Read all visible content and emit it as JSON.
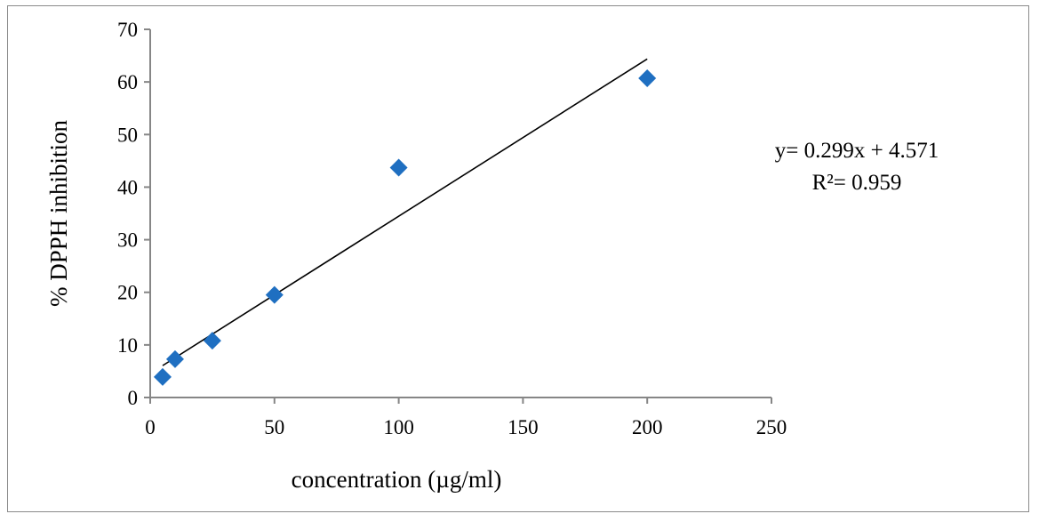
{
  "chart_data": {
    "type": "scatter",
    "title": "",
    "xlabel": "concentration (µg/ml)",
    "ylabel": "% DPPH inhibition",
    "xlim": [
      0,
      250
    ],
    "ylim": [
      0,
      70
    ],
    "xticks": [
      0,
      50,
      100,
      150,
      200,
      250
    ],
    "yticks": [
      0,
      10,
      20,
      30,
      40,
      50,
      60,
      70
    ],
    "grid": false,
    "series": [
      {
        "name": "DPPH inhibition",
        "color": "#1f6fc1",
        "marker": "diamond",
        "x": [
          5,
          10,
          25,
          50,
          100,
          200
        ],
        "y": [
          3.9,
          7.3,
          10.8,
          19.5,
          43.7,
          60.7
        ]
      }
    ],
    "trendline": {
      "type": "linear",
      "slope": 0.299,
      "intercept": 4.571,
      "x_range": [
        5,
        200
      ],
      "color": "#000000",
      "equation_label": "y= 0.299x + 4.571",
      "r2_label": "R²= 0.959"
    }
  }
}
